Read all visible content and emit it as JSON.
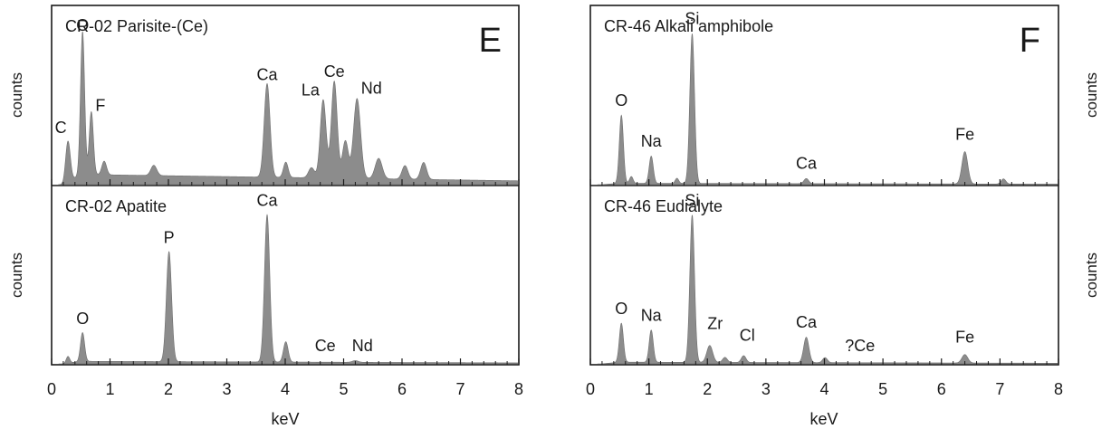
{
  "chart_data": [
    {
      "type": "area",
      "panel": "E",
      "title": "CR-02 Parisite-(Ce)",
      "ylabel": "counts",
      "xlabel": "keV",
      "xlim": [
        0,
        8
      ],
      "peaks": [
        {
          "label": "C",
          "energy": 0.28,
          "height": 0.24,
          "width": 0.04
        },
        {
          "label": "O",
          "energy": 0.53,
          "height": 0.84,
          "width": 0.035
        },
        {
          "label": "F",
          "energy": 0.68,
          "height": 0.37,
          "width": 0.035
        },
        {
          "label": "Ca",
          "energy": 3.69,
          "height": 0.55,
          "width": 0.05
        },
        {
          "label": "La",
          "energy": 4.65,
          "height": 0.46,
          "width": 0.05
        },
        {
          "label": "Ce",
          "energy": 4.84,
          "height": 0.57,
          "width": 0.05
        },
        {
          "label": "Nd",
          "energy": 5.23,
          "height": 0.47,
          "width": 0.06
        }
      ],
      "minor_peaks": [
        {
          "energy": 0.9,
          "height": 0.08,
          "width": 0.04
        },
        {
          "energy": 1.75,
          "height": 0.06,
          "width": 0.05
        },
        {
          "energy": 4.01,
          "height": 0.09,
          "width": 0.04
        },
        {
          "energy": 4.45,
          "height": 0.06,
          "width": 0.05
        },
        {
          "energy": 5.03,
          "height": 0.22,
          "width": 0.05
        },
        {
          "energy": 5.6,
          "height": 0.12,
          "width": 0.06
        },
        {
          "energy": 6.05,
          "height": 0.08,
          "width": 0.05
        },
        {
          "energy": 6.37,
          "height": 0.1,
          "width": 0.05
        }
      ],
      "background_level": 0.06
    },
    {
      "type": "area",
      "panel": "E",
      "title": "CR-02 Apatite",
      "ylabel": "counts",
      "xlabel": "keV",
      "xlim": [
        0,
        8
      ],
      "peaks": [
        {
          "label": "O",
          "energy": 0.53,
          "height": 0.17,
          "width": 0.035
        },
        {
          "label": "P",
          "energy": 2.01,
          "height": 0.65,
          "width": 0.045
        },
        {
          "label": "Ca",
          "energy": 3.69,
          "height": 0.87,
          "width": 0.045
        },
        {
          "label": "Ce",
          "energy": 4.84,
          "height": 0.0,
          "width": 0.04
        },
        {
          "label": "Nd",
          "energy": 5.23,
          "height": 0.0,
          "width": 0.04
        }
      ],
      "minor_peaks": [
        {
          "energy": 0.28,
          "height": 0.04,
          "width": 0.03
        },
        {
          "energy": 4.01,
          "height": 0.12,
          "width": 0.04
        },
        {
          "energy": 5.2,
          "height": 0.01,
          "width": 0.05
        }
      ],
      "background_level": 0.015
    },
    {
      "type": "area",
      "panel": "F",
      "title": "CR-46 Alkali amphibole",
      "ylabel": "counts",
      "xlabel": "keV",
      "xlim": [
        0,
        8
      ],
      "peaks": [
        {
          "label": "O",
          "energy": 0.53,
          "height": 0.4,
          "width": 0.035
        },
        {
          "label": "Na",
          "energy": 1.04,
          "height": 0.16,
          "width": 0.035
        },
        {
          "label": "Si",
          "energy": 1.74,
          "height": 0.88,
          "width": 0.04
        },
        {
          "label": "Ca",
          "energy": 3.69,
          "height": 0.03,
          "width": 0.04
        },
        {
          "label": "Fe",
          "energy": 6.4,
          "height": 0.19,
          "width": 0.05
        }
      ],
      "minor_peaks": [
        {
          "energy": 0.7,
          "height": 0.04,
          "width": 0.03
        },
        {
          "energy": 1.48,
          "height": 0.03,
          "width": 0.03
        },
        {
          "energy": 7.06,
          "height": 0.03,
          "width": 0.04
        }
      ],
      "background_level": 0.008
    },
    {
      "type": "area",
      "panel": "F",
      "title": "CR-46 Eudialyte",
      "ylabel": "counts",
      "xlabel": "keV",
      "xlim": [
        0,
        8
      ],
      "peaks": [
        {
          "label": "O",
          "energy": 0.53,
          "height": 0.23,
          "width": 0.035
        },
        {
          "label": "Na",
          "energy": 1.04,
          "height": 0.19,
          "width": 0.035
        },
        {
          "label": "Si",
          "energy": 1.74,
          "height": 0.87,
          "width": 0.04
        },
        {
          "label": "Zr",
          "energy": 2.04,
          "height": 0.1,
          "width": 0.05
        },
        {
          "label": "Cl",
          "energy": 2.62,
          "height": 0.04,
          "width": 0.04
        },
        {
          "label": "Ca",
          "energy": 3.69,
          "height": 0.15,
          "width": 0.045
        },
        {
          "label": "?Ce",
          "energy": 4.84,
          "height": 0.0,
          "width": 0.04
        },
        {
          "label": "Fe",
          "energy": 6.4,
          "height": 0.05,
          "width": 0.05
        }
      ],
      "minor_peaks": [
        {
          "energy": 2.3,
          "height": 0.03,
          "width": 0.04
        },
        {
          "energy": 4.01,
          "height": 0.03,
          "width": 0.04
        }
      ],
      "background_level": 0.01
    }
  ],
  "panel_letters": {
    "left": "E",
    "right": "F"
  },
  "x_ticks": [
    "0",
    "1",
    "2",
    "3",
    "4",
    "5",
    "6",
    "7",
    "8"
  ],
  "fill_color": "#8c8c8c",
  "axis_color": "#1a1a1a"
}
